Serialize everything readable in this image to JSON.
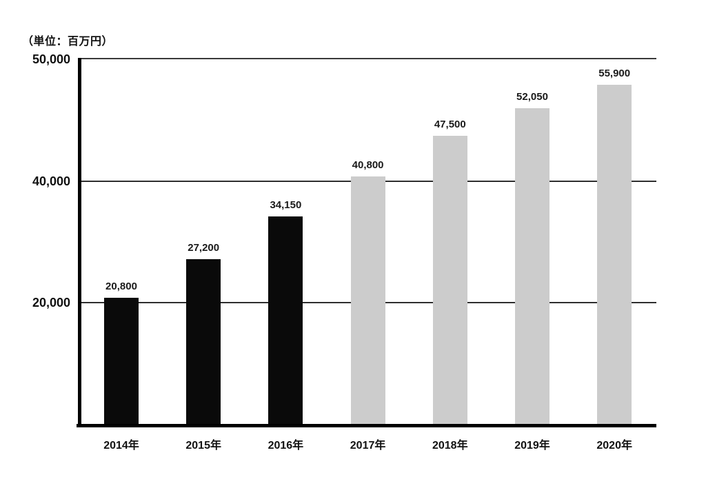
{
  "chart_data": {
    "type": "bar",
    "title": "",
    "unit_label": "（単位：百万円）",
    "xlabel": "",
    "ylabel": "",
    "categories": [
      "2014年",
      "2015年",
      "2016年",
      "2017年",
      "2018年",
      "2019年",
      "2020年"
    ],
    "values": [
      20800,
      27200,
      34150,
      40800,
      47500,
      52050,
      55900
    ],
    "value_labels": [
      "20,800",
      "27,200",
      "34,150",
      "40,800",
      "47,500",
      "52,050",
      "55,900"
    ],
    "bar_colors": [
      "#0a0a0a",
      "#0a0a0a",
      "#0a0a0a",
      "#cccccc",
      "#cccccc",
      "#cccccc",
      "#cccccc"
    ],
    "y_axis": {
      "ticks": [
        {
          "label": "50,000",
          "value": 50000
        },
        {
          "label": "40,000",
          "value": 40000
        },
        {
          "label": "20,000",
          "value": 20000
        }
      ]
    },
    "gridlines": [
      40000,
      20000
    ],
    "ylim": [
      0,
      60000
    ],
    "grid": "horizontal-partial",
    "legend": "none"
  },
  "colors": {
    "actual_bar": "#0a0a0a",
    "forecast_bar": "#cccccc",
    "axis": "#000000",
    "grid_line": "#2e2e2e",
    "text": "#111111"
  }
}
